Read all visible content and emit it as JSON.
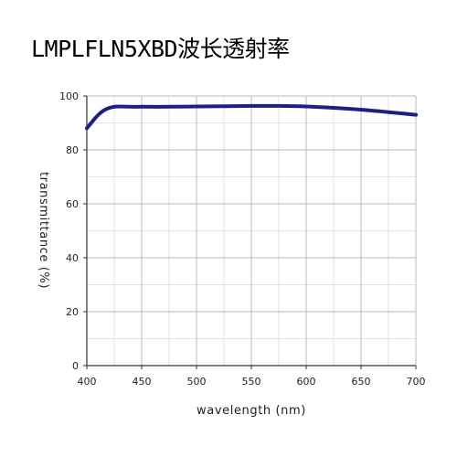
{
  "title": "LMPLFLN5XBD波长透射率",
  "colors": {
    "series": "#1d1f86",
    "major_grid": "#b8b8b8",
    "minor_grid": "#e2e2e2",
    "axis": "#333333"
  },
  "chart_data": {
    "type": "line",
    "title": "LMPLFLN5XBD波长透射率",
    "xlabel": "wavelength (nm)",
    "ylabel": "transmittance (%)",
    "xlim": [
      400,
      700
    ],
    "ylim": [
      0,
      100
    ],
    "xticks": [
      400,
      450,
      500,
      550,
      600,
      650,
      700
    ],
    "yticks": [
      0,
      20,
      40,
      60,
      80,
      100
    ],
    "grid": true,
    "series": [
      {
        "x": [
          400,
          405,
          410,
          415,
          420,
          425,
          430,
          440,
          450,
          475,
          500,
          525,
          550,
          575,
          600,
          625,
          650,
          675,
          700
        ],
        "values": [
          88,
          90.5,
          92.8,
          94.5,
          95.5,
          96,
          96.1,
          96,
          96,
          96,
          96.1,
          96.2,
          96.3,
          96.3,
          96.1,
          95.6,
          94.9,
          94,
          93
        ]
      }
    ]
  }
}
